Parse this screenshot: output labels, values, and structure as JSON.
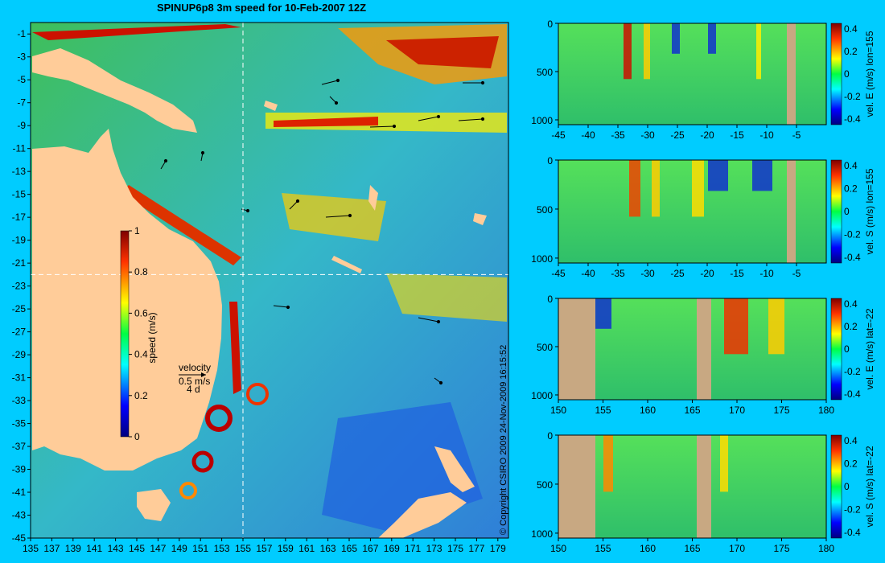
{
  "title": "SPINUP6p8 3m speed for 10-Feb-2007 12Z",
  "credit": "© Copyright CSIRO 2009   24-Nov-2009 16:15:52",
  "colors": {
    "background": "#00ccff",
    "land": "#ffcc99",
    "section_land": "#c8a882"
  },
  "map": {
    "x_ticks": [
      "135",
      "137",
      "139",
      "141",
      "143",
      "145",
      "147",
      "149",
      "151",
      "153",
      "155",
      "157",
      "159",
      "161",
      "163",
      "165",
      "167",
      "169",
      "171",
      "173",
      "175",
      "177",
      "179"
    ],
    "y_ticks": [
      "-1",
      "-3",
      "-5",
      "-7",
      "-9",
      "-11",
      "-13",
      "-15",
      "-17",
      "-19",
      "-21",
      "-23",
      "-25",
      "-27",
      "-29",
      "-31",
      "-33",
      "-35",
      "-37",
      "-39",
      "-41",
      "-43",
      "-45"
    ],
    "section_lines": {
      "lon": 155,
      "lat": -22
    },
    "colorbar": {
      "label": "speed (m/s)",
      "ticks": [
        "1",
        "0.8",
        "0.6",
        "0.4",
        "0.2",
        "0"
      ]
    },
    "legend": {
      "title": "velocity",
      "speed": "0.5 m/s",
      "days": "4 d"
    }
  },
  "chart_data": [
    {
      "type": "heatmap",
      "name": "map",
      "title": "SPINUP6p8 3m speed for 10-Feb-2007 12Z",
      "xlim": [
        135,
        180
      ],
      "ylim": [
        -45,
        0
      ],
      "colorbar_label": "speed (m/s)",
      "crange": [
        0,
        1
      ]
    },
    {
      "type": "heatmap",
      "name": "section1",
      "x_ticks": [
        "-45",
        "-40",
        "-35",
        "-30",
        "-25",
        "-20",
        "-15",
        "-10",
        "-5"
      ],
      "y_ticks": [
        "0",
        "500",
        "1000"
      ],
      "xlim": [
        -45,
        0
      ],
      "ylim": [
        0,
        1050
      ],
      "colorbar_label": "vel. E (m/s) lon=155",
      "colorbar_ticks": [
        "0.4",
        "0.2",
        "0",
        "-0.2",
        "-0.4"
      ]
    },
    {
      "type": "heatmap",
      "name": "section2",
      "x_ticks": [
        "-45",
        "-40",
        "-35",
        "-30",
        "-25",
        "-20",
        "-15",
        "-10",
        "-5"
      ],
      "y_ticks": [
        "0",
        "500",
        "1000"
      ],
      "xlim": [
        -45,
        0
      ],
      "ylim": [
        0,
        1050
      ],
      "colorbar_label": "vel. S (m/s) lon=155",
      "colorbar_ticks": [
        "0.4",
        "0.2",
        "0",
        "-0.2",
        "-0.4"
      ]
    },
    {
      "type": "heatmap",
      "name": "section3",
      "x_ticks": [
        "150",
        "155",
        "160",
        "165",
        "170",
        "175",
        "180"
      ],
      "y_ticks": [
        "0",
        "500",
        "1000"
      ],
      "xlim": [
        150,
        180
      ],
      "ylim": [
        0,
        1050
      ],
      "colorbar_label": "vel. E (m/s) lat=-22",
      "colorbar_ticks": [
        "0.4",
        "0.2",
        "0",
        "-0.2",
        "-0.4"
      ]
    },
    {
      "type": "heatmap",
      "name": "section4",
      "x_ticks": [
        "150",
        "155",
        "160",
        "165",
        "170",
        "175",
        "180"
      ],
      "y_ticks": [
        "0",
        "500",
        "1000"
      ],
      "xlim": [
        150,
        180
      ],
      "ylim": [
        0,
        1050
      ],
      "colorbar_label": "vel. S (m/s) lat=-22",
      "colorbar_ticks": [
        "0.4",
        "0.2",
        "0",
        "-0.2",
        "-0.4"
      ]
    }
  ]
}
